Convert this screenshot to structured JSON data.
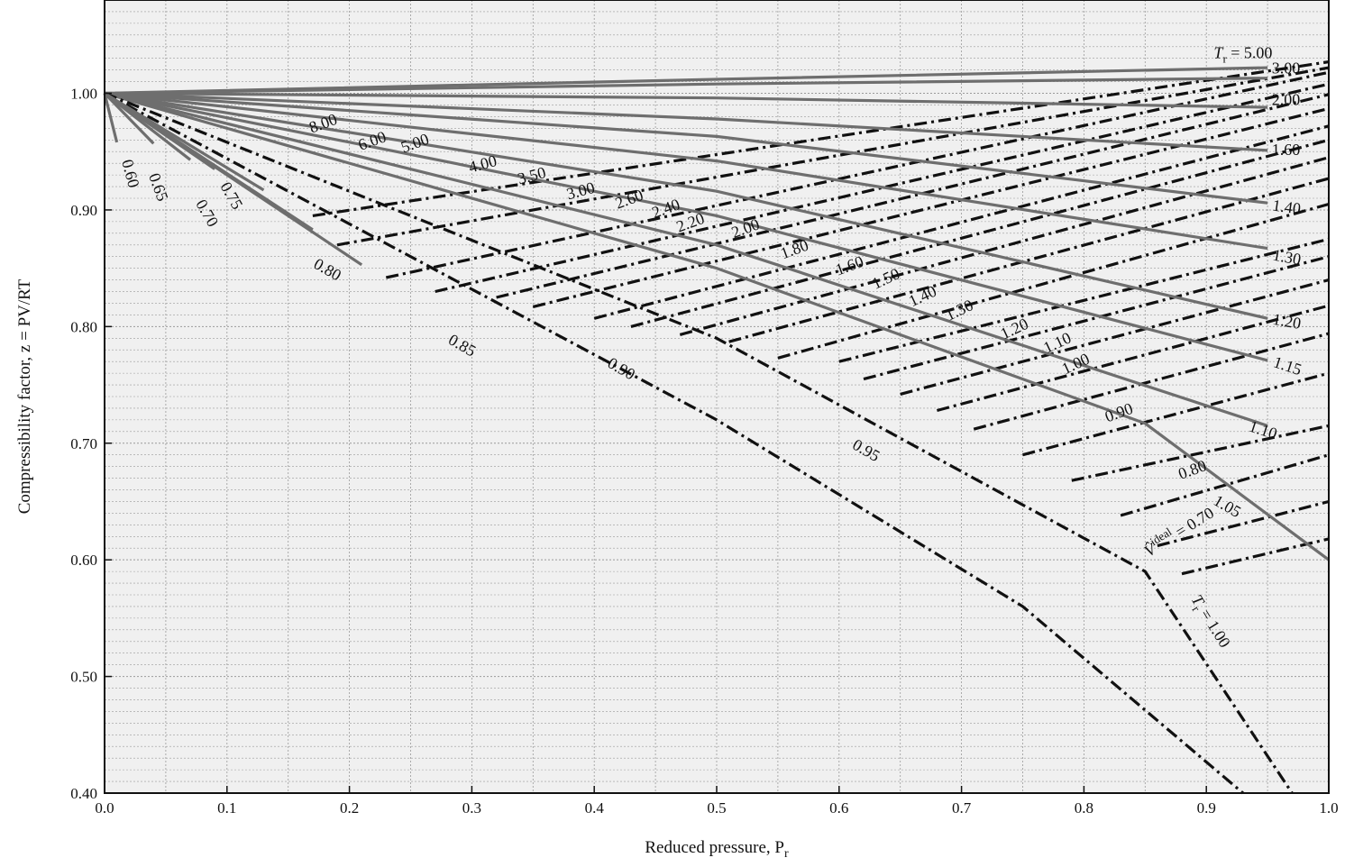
{
  "chart_data": {
    "type": "line",
    "xlabel": "Reduced pressure, P",
    "xlabel_sub": "r",
    "ylabel": "Compressibility factor, z = PV/RT",
    "xlim": [
      0.0,
      1.0
    ],
    "ylim": [
      0.4,
      1.08
    ],
    "x_ticks": [
      "0.0",
      "0.1",
      "0.2",
      "0.3",
      "0.4",
      "0.5",
      "0.6",
      "0.7",
      "0.8",
      "0.9",
      "1.0"
    ],
    "y_ticks": [
      "0.40",
      "0.50",
      "0.60",
      "0.70",
      "0.80",
      "0.90",
      "1.00"
    ],
    "y_tick_values": [
      0.4,
      0.5,
      0.6,
      0.7,
      0.8,
      0.9,
      1.0
    ],
    "grid": true,
    "colors": {
      "isotherm": "#6e6e6e",
      "isochore": "#111111",
      "plot_bg": "#f0f0f0",
      "grid": "#9a9a9a"
    },
    "tr_prefix": "T",
    "tr_sub": "r",
    "tr_eq": " = ",
    "vr_label_tail": " = 0.70",
    "vr_sup": "ideal",
    "isotherms": [
      {
        "name": "5.00",
        "label": "5.00",
        "points": [
          [
            0,
            1.0
          ],
          [
            0.5,
            1.012
          ],
          [
            0.95,
            1.022
          ]
        ]
      },
      {
        "name": "3.00",
        "label": "3.00",
        "points": [
          [
            0,
            1.0
          ],
          [
            0.5,
            1.008
          ],
          [
            0.95,
            1.013
          ]
        ]
      },
      {
        "name": "2.00",
        "label": "2.00",
        "points": [
          [
            0,
            1.0
          ],
          [
            0.5,
            0.996
          ],
          [
            0.95,
            0.988
          ]
        ]
      },
      {
        "name": "1.60",
        "label": "1.60",
        "points": [
          [
            0,
            1.0
          ],
          [
            0.5,
            0.978
          ],
          [
            0.95,
            0.951
          ]
        ]
      },
      {
        "name": "1.40",
        "label": "1.40",
        "points": [
          [
            0,
            1.0
          ],
          [
            0.5,
            0.963
          ],
          [
            0.95,
            0.906
          ]
        ]
      },
      {
        "name": "1.30",
        "label": "1.30",
        "points": [
          [
            0,
            1.0
          ],
          [
            0.5,
            0.942
          ],
          [
            0.95,
            0.867
          ]
        ]
      },
      {
        "name": "1.20",
        "label": "1.20",
        "points": [
          [
            0,
            1.0
          ],
          [
            0.5,
            0.916
          ],
          [
            0.95,
            0.807
          ]
        ]
      },
      {
        "name": "1.15",
        "label": "1.15",
        "points": [
          [
            0,
            1.0
          ],
          [
            0.5,
            0.895
          ],
          [
            0.95,
            0.771
          ]
        ]
      },
      {
        "name": "1.10",
        "label": "1.10",
        "points": [
          [
            0,
            1.0
          ],
          [
            0.5,
            0.87
          ],
          [
            0.95,
            0.715
          ]
        ]
      },
      {
        "name": "1.05",
        "label": "1.05",
        "points": [
          [
            0,
            1.0
          ],
          [
            0.5,
            0.85
          ],
          [
            0.85,
            0.717
          ],
          [
            1.0,
            0.6
          ]
        ]
      },
      {
        "name": "1.00",
        "label": "1.00",
        "points": [
          [
            0,
            1.0
          ],
          [
            0.5,
            0.79
          ],
          [
            0.85,
            0.59
          ],
          [
            0.97,
            0.4
          ]
        ]
      },
      {
        "name": "0.95",
        "label": "0.95",
        "points": [
          [
            0,
            1.0
          ],
          [
            0.5,
            0.72
          ],
          [
            0.75,
            0.56
          ],
          [
            0.93,
            0.4
          ]
        ]
      },
      {
        "name": "0.90",
        "label": "0.90",
        "points": [
          [
            0,
            1.0
          ],
          [
            0.21,
            0.853
          ]
        ]
      },
      {
        "name": "0.85",
        "label": "0.85",
        "points": [
          [
            0,
            1.0
          ],
          [
            0.17,
            0.883
          ]
        ]
      },
      {
        "name": "0.80",
        "label": "0.80",
        "points": [
          [
            0,
            1.0
          ],
          [
            0.13,
            0.917
          ]
        ]
      },
      {
        "name": "0.75",
        "label": "0.75",
        "points": [
          [
            0,
            1.0
          ],
          [
            0.09,
            0.935
          ]
        ]
      },
      {
        "name": "0.70",
        "label": "0.70",
        "points": [
          [
            0,
            1.0
          ],
          [
            0.07,
            0.943
          ]
        ]
      },
      {
        "name": "0.65",
        "label": "0.65",
        "points": [
          [
            0,
            1.0
          ],
          [
            0.04,
            0.957
          ]
        ]
      },
      {
        "name": "0.60",
        "label": "0.60",
        "points": [
          [
            0,
            1.0
          ],
          [
            0.01,
            0.958
          ]
        ]
      }
    ],
    "isochores": [
      {
        "name": "8.00",
        "label": "8.00",
        "points": [
          [
            0.17,
            0.895
          ],
          [
            1.0,
            1.027
          ]
        ]
      },
      {
        "name": "6.00",
        "label": "6.00",
        "points": [
          [
            0.19,
            0.87
          ],
          [
            1.0,
            1.022
          ]
        ]
      },
      {
        "name": "5.00",
        "label": "5.00",
        "points": [
          [
            0.23,
            0.842
          ],
          [
            1.0,
            1.018
          ]
        ]
      },
      {
        "name": "4.00",
        "label": "4.00",
        "points": [
          [
            0.27,
            0.83
          ],
          [
            1.0,
            1.008
          ]
        ]
      },
      {
        "name": "3.50",
        "label": "3.50",
        "points": [
          [
            0.32,
            0.825
          ],
          [
            1.0,
            0.999
          ]
        ]
      },
      {
        "name": "3.00",
        "label": "3.00",
        "points": [
          [
            0.35,
            0.817
          ],
          [
            1.0,
            0.987
          ]
        ]
      },
      {
        "name": "2.60",
        "label": "2.60",
        "points": [
          [
            0.4,
            0.807
          ],
          [
            1.0,
            0.972
          ]
        ]
      },
      {
        "name": "2.40",
        "label": "2.40",
        "points": [
          [
            0.43,
            0.8
          ],
          [
            1.0,
            0.96
          ]
        ]
      },
      {
        "name": "2.20",
        "label": "2.20",
        "points": [
          [
            0.47,
            0.793
          ],
          [
            1.0,
            0.945
          ]
        ]
      },
      {
        "name": "2.00",
        "label": "2.00",
        "points": [
          [
            0.51,
            0.787
          ],
          [
            1.0,
            0.927
          ]
        ]
      },
      {
        "name": "1.80",
        "label": "1.80",
        "points": [
          [
            0.55,
            0.773
          ],
          [
            1.0,
            0.905
          ]
        ]
      },
      {
        "name": "1.60",
        "label": "1.60",
        "points": [
          [
            0.6,
            0.77
          ],
          [
            1.0,
            0.875
          ]
        ]
      },
      {
        "name": "1.50",
        "label": "1.50",
        "points": [
          [
            0.62,
            0.755
          ],
          [
            1.0,
            0.86
          ]
        ]
      },
      {
        "name": "1.40",
        "label": "1.40",
        "points": [
          [
            0.65,
            0.742
          ],
          [
            1.0,
            0.84
          ]
        ]
      },
      {
        "name": "1.30",
        "label": "1.30",
        "points": [
          [
            0.68,
            0.728
          ],
          [
            1.0,
            0.818
          ]
        ]
      },
      {
        "name": "1.20",
        "label": "1.20",
        "points": [
          [
            0.71,
            0.712
          ],
          [
            1.0,
            0.794
          ]
        ]
      },
      {
        "name": "1.10",
        "label": "1.10",
        "points": [
          [
            0.75,
            0.69
          ],
          [
            1.0,
            0.76
          ]
        ]
      },
      {
        "name": "1.00",
        "label": "1.00",
        "points": [
          [
            0.79,
            0.668
          ],
          [
            1.0,
            0.715
          ]
        ]
      },
      {
        "name": "0.90",
        "label": "0.90",
        "points": [
          [
            0.83,
            0.638
          ],
          [
            1.0,
            0.69
          ]
        ]
      },
      {
        "name": "0.80",
        "label": "0.80",
        "points": [
          [
            0.86,
            0.612
          ],
          [
            1.0,
            0.65
          ]
        ]
      },
      {
        "name": "0.70",
        "label": "0.70",
        "points": [
          [
            0.88,
            0.588
          ],
          [
            1.0,
            0.618
          ]
        ]
      }
    ]
  }
}
